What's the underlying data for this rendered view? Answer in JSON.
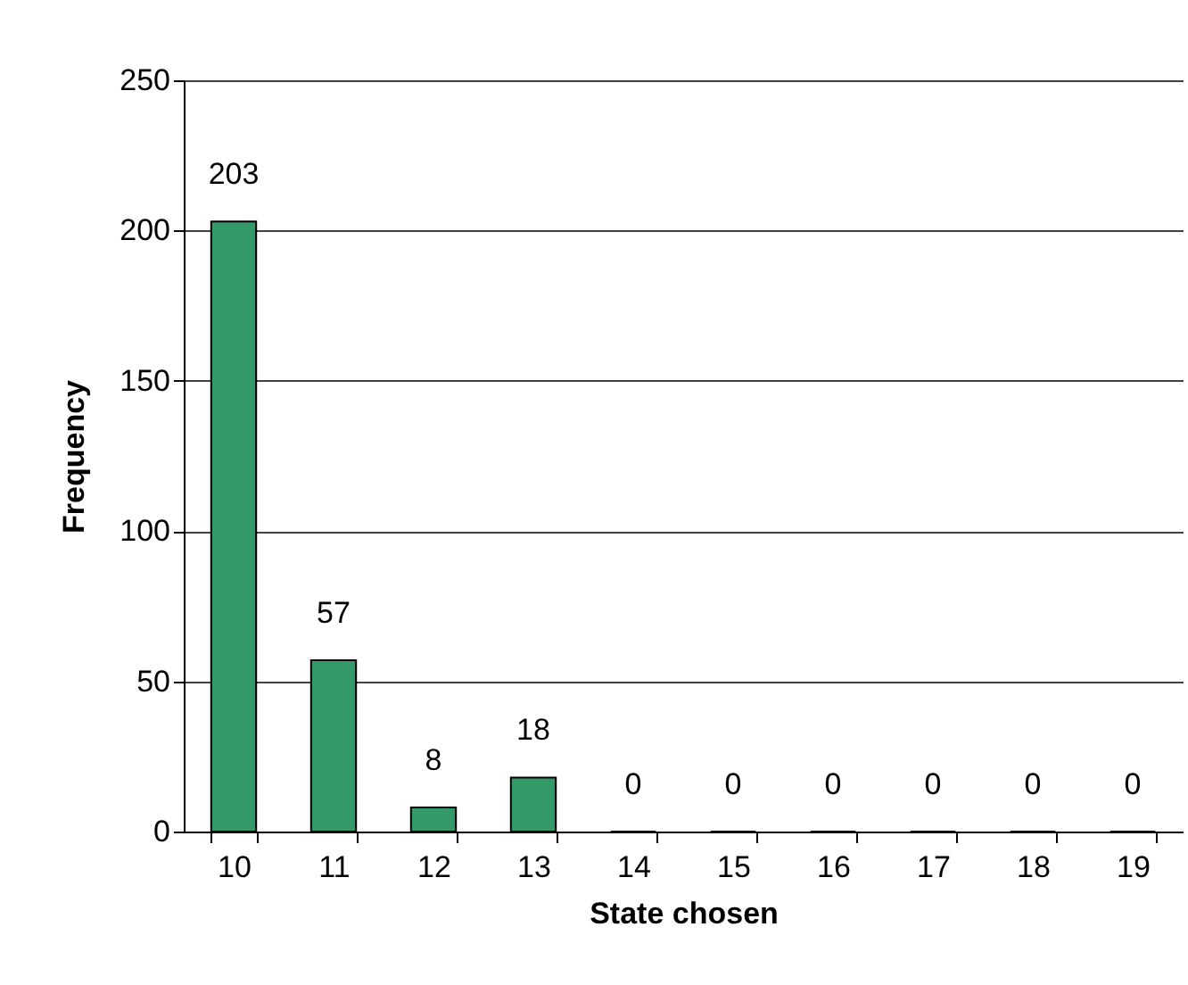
{
  "chart_data": {
    "type": "bar",
    "xlabel": "State chosen",
    "ylabel": "Frequency",
    "categories": [
      "10",
      "11",
      "12",
      "13",
      "14",
      "15",
      "16",
      "17",
      "18",
      "19"
    ],
    "values": [
      203,
      57,
      8,
      18,
      0,
      0,
      0,
      0,
      0,
      0
    ],
    "color": "#339966",
    "ylim": [
      0,
      250
    ],
    "yticks": [
      0,
      50,
      100,
      150,
      200,
      250
    ],
    "grid": "y",
    "data_labels": true
  }
}
